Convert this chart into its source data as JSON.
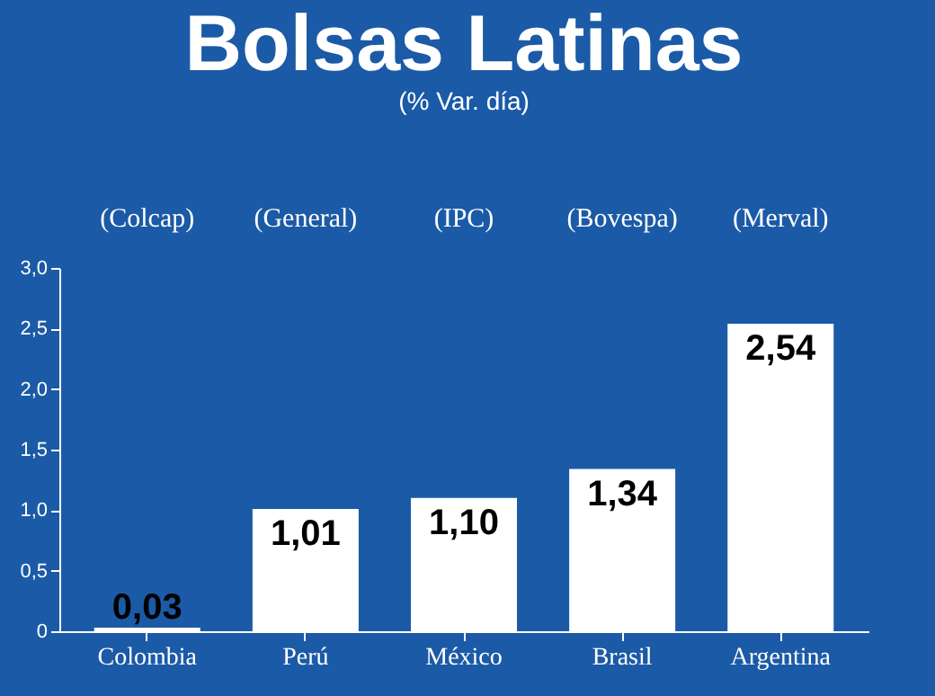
{
  "chart_data": {
    "type": "bar",
    "title": "Bolsas Latinas",
    "subtitle": "(% Var. día)",
    "categories": [
      "Colombia",
      "Perú",
      "México",
      "Brasil",
      "Argentina"
    ],
    "values": [
      0.03,
      1.01,
      1.1,
      1.34,
      2.54
    ],
    "value_labels": [
      "0,03",
      "1,01",
      "1,10",
      "1,34",
      "2,54"
    ],
    "color": "#ffffff",
    "ylim": [
      0,
      3
    ],
    "yticks": [
      0,
      {
        "value": 0.5,
        "label": "0,5"
      },
      {
        "value": 1,
        "label": "1,0"
      },
      {
        "value": 1.5,
        "label": "1,5"
      },
      {
        "value": 2,
        "label": "2,0"
      },
      {
        "value": 2.5,
        "label": "2,5"
      },
      {
        "value": 3,
        "label": "3,0"
      }
    ],
    "annotations": [
      "(Colcap)",
      "(General)",
      "(IPC)",
      "(Bovespa)",
      "(Merval)"
    ],
    "grid": false
  }
}
